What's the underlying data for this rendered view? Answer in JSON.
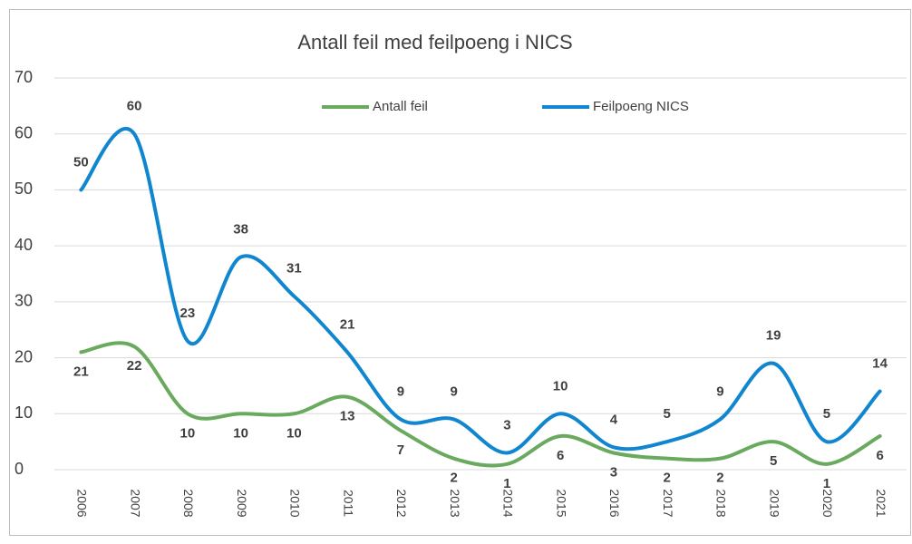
{
  "chart_data": {
    "type": "line",
    "title": "Antall feil med feilpoeng i NICS",
    "categories": [
      "2006",
      "2007",
      "2008",
      "2009",
      "2010",
      "2011",
      "2012",
      "2013",
      "2014",
      "2015",
      "2016",
      "2017",
      "2018",
      "2019",
      "2020",
      "2021"
    ],
    "series": [
      {
        "name": "Antall feil",
        "color": "#6aaa5e",
        "values": [
          21,
          22,
          10,
          10,
          10,
          13,
          7,
          2,
          1,
          6,
          3,
          2,
          2,
          5,
          1,
          6
        ]
      },
      {
        "name": "Feilpoeng NICS",
        "color": "#0f86cf",
        "values": [
          50,
          60,
          23,
          38,
          31,
          21,
          9,
          9,
          3,
          10,
          4,
          5,
          9,
          19,
          5,
          14
        ]
      }
    ],
    "ylim": [
      0,
      70
    ],
    "yticks": [
      0,
      10,
      20,
      30,
      40,
      50,
      60,
      70
    ],
    "grid": true,
    "smooth": true,
    "legend": "top"
  }
}
